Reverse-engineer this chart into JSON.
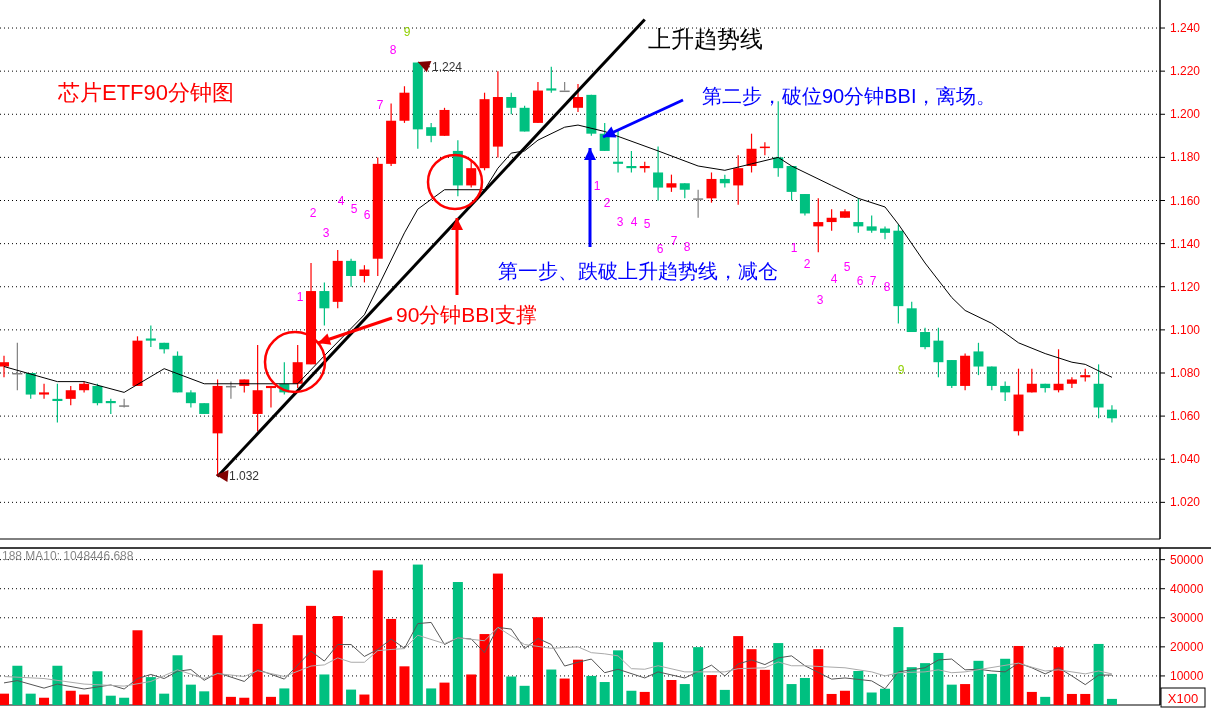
{
  "chart_data": [
    {
      "type": "candlestick",
      "title": "芯片ETF90分钟图",
      "categories": [
        null,
        null,
        null,
        null,
        null,
        null,
        null,
        null,
        null,
        null,
        null,
        null,
        null,
        null,
        null,
        null,
        null,
        null,
        null,
        null,
        null,
        null,
        null,
        null,
        null,
        null,
        null,
        null,
        null,
        null,
        null,
        null,
        null,
        null,
        null,
        null,
        null,
        null,
        null,
        null,
        null,
        null,
        null,
        null,
        null,
        null,
        null,
        null,
        null,
        null,
        null,
        null,
        null,
        null,
        null,
        null,
        null,
        null,
        null,
        null,
        null,
        null,
        null,
        null,
        null,
        null,
        null,
        null,
        null,
        null,
        null,
        null,
        null,
        null,
        null,
        null,
        null,
        null,
        null,
        null,
        null,
        null,
        null,
        null
      ],
      "ohlc": [
        [
          1.083,
          1.088,
          1.078,
          1.085
        ],
        [
          1.08,
          1.094,
          1.072,
          1.08
        ],
        [
          1.08,
          1.08,
          1.068,
          1.07
        ],
        [
          1.07,
          1.075,
          1.068,
          1.071
        ],
        [
          1.068,
          1.075,
          1.057,
          1.067
        ],
        [
          1.068,
          1.074,
          1.065,
          1.072
        ],
        [
          1.072,
          1.076,
          1.071,
          1.075
        ],
        [
          1.074,
          1.075,
          1.065,
          1.066
        ],
        [
          1.067,
          1.068,
          1.061,
          1.066
        ],
        [
          1.065,
          1.068,
          1.064,
          1.065
        ],
        [
          1.074,
          1.097,
          1.074,
          1.095
        ],
        [
          1.096,
          1.102,
          1.092,
          1.095
        ],
        [
          1.094,
          1.094,
          1.089,
          1.091
        ],
        [
          1.088,
          1.09,
          1.071,
          1.071
        ],
        [
          1.071,
          1.072,
          1.064,
          1.066
        ],
        [
          1.066,
          1.066,
          1.061,
          1.061
        ],
        [
          1.052,
          1.077,
          1.032,
          1.074
        ],
        [
          1.074,
          1.076,
          1.068,
          1.074
        ],
        [
          1.074,
          1.077,
          1.071,
          1.077
        ],
        [
          1.061,
          1.093,
          1.053,
          1.072
        ],
        [
          1.073,
          1.074,
          1.064,
          1.074
        ],
        [
          1.075,
          1.085,
          1.07,
          1.071
        ],
        [
          1.075,
          1.093,
          1.073,
          1.085
        ],
        [
          1.084,
          1.131,
          1.084,
          1.118
        ],
        [
          1.118,
          1.122,
          1.102,
          1.11
        ],
        [
          1.113,
          1.137,
          1.11,
          1.132
        ],
        [
          1.132,
          1.133,
          1.12,
          1.125
        ],
        [
          1.125,
          1.13,
          1.122,
          1.128
        ],
        [
          1.133,
          1.18,
          1.125,
          1.177
        ],
        [
          1.177,
          1.205,
          1.176,
          1.197
        ],
        [
          1.197,
          1.213,
          1.196,
          1.21
        ],
        [
          1.224,
          1.224,
          1.184,
          1.193
        ],
        [
          1.194,
          1.196,
          1.187,
          1.19
        ],
        [
          1.19,
          1.203,
          1.19,
          1.202
        ],
        [
          1.183,
          1.188,
          1.162,
          1.167
        ],
        [
          1.167,
          1.179,
          1.166,
          1.175
        ],
        [
          1.175,
          1.21,
          1.174,
          1.207
        ],
        [
          1.185,
          1.22,
          1.18,
          1.208
        ],
        [
          1.208,
          1.21,
          1.2,
          1.203
        ],
        [
          1.203,
          1.204,
          1.192,
          1.192
        ],
        [
          1.196,
          1.215,
          1.196,
          1.211
        ],
        [
          1.212,
          1.222,
          1.21,
          1.211
        ],
        [
          1.211,
          1.215,
          1.211,
          1.211
        ],
        [
          1.203,
          1.214,
          1.201,
          1.208
        ],
        [
          1.209,
          1.209,
          1.19,
          1.191
        ],
        [
          1.191,
          1.196,
          1.183,
          1.183
        ],
        [
          1.178,
          1.193,
          1.173,
          1.177
        ],
        [
          1.176,
          1.183,
          1.173,
          1.175
        ],
        [
          1.175,
          1.178,
          1.173,
          1.176
        ],
        [
          1.173,
          1.185,
          1.16,
          1.166
        ],
        [
          1.166,
          1.172,
          1.164,
          1.168
        ],
        [
          1.168,
          1.168,
          1.161,
          1.165
        ],
        [
          1.161,
          1.165,
          1.152,
          1.161
        ],
        [
          1.161,
          1.173,
          1.159,
          1.17
        ],
        [
          1.17,
          1.172,
          1.166,
          1.168
        ],
        [
          1.167,
          1.181,
          1.158,
          1.175
        ],
        [
          1.176,
          1.191,
          1.173,
          1.184
        ],
        [
          1.185,
          1.187,
          1.181,
          1.185
        ],
        [
          1.18,
          1.206,
          1.171,
          1.175
        ],
        [
          1.176,
          1.176,
          1.16,
          1.164
        ],
        [
          1.163,
          1.163,
          1.153,
          1.154
        ],
        [
          1.148,
          1.161,
          1.136,
          1.15
        ],
        [
          1.15,
          1.156,
          1.146,
          1.152
        ],
        [
          1.152,
          1.156,
          1.152,
          1.155
        ],
        [
          1.15,
          1.161,
          1.145,
          1.148
        ],
        [
          1.148,
          1.153,
          1.145,
          1.146
        ],
        [
          1.147,
          1.148,
          1.142,
          1.145
        ],
        [
          1.146,
          1.149,
          1.103,
          1.111
        ],
        [
          1.11,
          1.113,
          1.099,
          1.099
        ],
        [
          1.099,
          1.101,
          1.091,
          1.092
        ],
        [
          1.095,
          1.101,
          1.078,
          1.085
        ],
        [
          1.086,
          1.086,
          1.073,
          1.074
        ],
        [
          1.074,
          1.089,
          1.072,
          1.088
        ],
        [
          1.09,
          1.094,
          1.079,
          1.083
        ],
        [
          1.083,
          1.083,
          1.072,
          1.074
        ],
        [
          1.074,
          1.076,
          1.067,
          1.071
        ],
        [
          1.053,
          1.082,
          1.051,
          1.07
        ],
        [
          1.071,
          1.082,
          1.071,
          1.075
        ],
        [
          1.075,
          1.075,
          1.071,
          1.073
        ],
        [
          1.072,
          1.091,
          1.071,
          1.075
        ],
        [
          1.075,
          1.078,
          1.073,
          1.077
        ],
        [
          1.078,
          1.082,
          1.076,
          1.079
        ],
        [
          1.075,
          1.084,
          1.059,
          1.064
        ],
        [
          1.063,
          1.065,
          1.057,
          1.059
        ]
      ],
      "colors": [
        "#ff0000",
        "#808080",
        "#00c080",
        "#ff0000",
        "#00c080",
        "#ff0000",
        "#ff0000",
        "#00c080",
        "#00c080",
        "#808080",
        "#ff0000",
        "#00c080",
        "#00c080",
        "#00c080",
        "#00c080",
        "#00c080",
        "#ff0000",
        "#808080",
        "#ff0000",
        "#ff0000",
        "#ff0000",
        "#00c080",
        "#ff0000",
        "#ff0000",
        "#00c080",
        "#ff0000",
        "#00c080",
        "#ff0000",
        "#ff0000",
        "#ff0000",
        "#ff0000",
        "#00c080",
        "#00c080",
        "#ff0000",
        "#00c080",
        "#ff0000",
        "#ff0000",
        "#ff0000",
        "#00c080",
        "#00c080",
        "#ff0000",
        "#00c080",
        "#808080",
        "#ff0000",
        "#00c080",
        "#00c080",
        "#00c080",
        "#00c080",
        "#ff0000",
        "#00c080",
        "#ff0000",
        "#00c080",
        "#808080",
        "#ff0000",
        "#00c080",
        "#ff0000",
        "#ff0000",
        "#ff0000",
        "#00c080",
        "#00c080",
        "#00c080",
        "#ff0000",
        "#ff0000",
        "#ff0000",
        "#00c080",
        "#00c080",
        "#00c080",
        "#00c080",
        "#00c080",
        "#00c080",
        "#00c080",
        "#00c080",
        "#ff0000",
        "#00c080",
        "#00c080",
        "#00c080",
        "#ff0000",
        "#ff0000",
        "#00c080",
        "#ff0000",
        "#ff0000",
        "#ff0000",
        "#00c080",
        "#00c080"
      ],
      "ylim": [
        1.003,
        1.253
      ],
      "yticks": [
        {
          "value": 1.02,
          "label": "1.020"
        },
        {
          "value": 1.04,
          "label": "1.040"
        },
        {
          "value": 1.06,
          "label": "1.060"
        },
        {
          "value": 1.08,
          "label": "1.080"
        },
        {
          "value": 1.1,
          "label": "1.100"
        },
        {
          "value": 1.12,
          "label": "1.120"
        },
        {
          "value": 1.14,
          "label": "1.140"
        },
        {
          "value": 1.16,
          "label": "1.160"
        },
        {
          "value": 1.18,
          "label": "1.180"
        },
        {
          "value": 1.2,
          "label": "1.200"
        },
        {
          "value": 1.22,
          "label": "1.220"
        },
        {
          "value": 1.24,
          "label": "1.240"
        }
      ],
      "grid": "y",
      "tick_labels": "y",
      "annotations": [
        "上升趋势线",
        "90分钟BBI支撑",
        "第一步、跌破上升趋势线，减仓",
        "第二步，破位90分钟BBI，离场。",
        "1",
        "2",
        "3",
        "4",
        "5",
        "6",
        "7",
        "8",
        "9",
        "1",
        "2",
        "3",
        "4",
        "5",
        "6",
        "7",
        "8",
        "1",
        "2",
        "3",
        "4",
        "5",
        "6",
        "7",
        "8",
        "9",
        "1.224",
        "1.032"
      ],
      "series": [
        {
          "type": "line",
          "color": "#000000",
          "values": [
            1.083,
            null,
            null,
            null,
            1.076,
            null,
            1.076,
            null,
            null,
            1.071,
            null,
            null,
            1.082,
            null,
            null,
            1.075,
            null,
            null,
            null,
            null,
            null,
            null,
            1.075,
            null,
            1.088,
            null,
            null,
            1.107,
            null,
            null,
            1.145,
            1.156,
            null,
            1.165,
            null,
            null,
            1.165,
            1.175,
            1.182,
            1.183,
            1.188,
            null,
            1.194,
            1.195,
            null,
            1.192,
            null,
            null,
            null,
            1.183,
            null,
            null,
            1.176,
            null,
            1.174,
            null,
            1.177,
            null,
            1.18,
            1.176,
            null,
            null,
            1.167,
            null,
            1.161,
            null,
            1.157,
            1.149,
            null,
            1.131,
            null,
            1.115,
            1.109,
            null,
            1.103,
            null,
            1.094,
            null,
            1.089,
            null,
            1.085,
            1.084,
            null,
            1.078
          ]
        },
        {
          "type": "line",
          "color": "#000000",
          "values": [
            null,
            null,
            null,
            null,
            null,
            null,
            null,
            null,
            null,
            null,
            null,
            null,
            null,
            null,
            null,
            null,
            1.032,
            null,
            null,
            null,
            null,
            null,
            null,
            null,
            null,
            null,
            null,
            null,
            null,
            null,
            null,
            null,
            null,
            null,
            null,
            null,
            null,
            null,
            null,
            null,
            null,
            null,
            null,
            null,
            null,
            null,
            null,
            null,
            1.244,
            null,
            null,
            null,
            null,
            null,
            null,
            null,
            null,
            null,
            null,
            null,
            null,
            null,
            null,
            null,
            null,
            null,
            null,
            null,
            null,
            null,
            null,
            null,
            null,
            null,
            null,
            null,
            null,
            null,
            null,
            null,
            null,
            null,
            null,
            null
          ]
        }
      ]
    },
    {
      "type": "bar",
      "categories": [
        null,
        null,
        null,
        null,
        null,
        null,
        null,
        null,
        null,
        null,
        null,
        null,
        null,
        null,
        null,
        null,
        null,
        null,
        null,
        null,
        null,
        null,
        null,
        null,
        null,
        null,
        null,
        null,
        null,
        null,
        null,
        null,
        null,
        null,
        null,
        null,
        null,
        null,
        null,
        null,
        null,
        null,
        null,
        null,
        null,
        null,
        null,
        null,
        null,
        null,
        null,
        null,
        null,
        null,
        null,
        null,
        null,
        null,
        null,
        null,
        null,
        null,
        null,
        null,
        null,
        null,
        null,
        null,
        null,
        null,
        null,
        null,
        null,
        null,
        null,
        null,
        null,
        null,
        null,
        null,
        null,
        null,
        null,
        null
      ],
      "ylim": [
        0,
        54000
      ],
      "yticks": [
        10000,
        20000,
        30000,
        40000,
        50000
      ],
      "ylabel": "X100",
      "grid": "y",
      "tick_labels": "y",
      "annotations": [
        "188 MA10: 1048446.688"
      ],
      "series": [
        {
          "type": "bar",
          "values": [
            3900,
            13500,
            3900,
            2500,
            13500,
            4900,
            3600,
            11600,
            3200,
            2500,
            25700,
            9600,
            3900,
            17100,
            7000,
            4700,
            24000,
            2800,
            2500,
            27900,
            2800,
            5700,
            24000,
            34100,
            10500,
            30600,
            5300,
            3600,
            46300,
            29600,
            13300,
            48300,
            5700,
            7700,
            42300,
            10500,
            24400,
            45200,
            9800,
            6600,
            30200,
            12200,
            9100,
            15600,
            10000,
            7900,
            18800,
            4900,
            4500,
            21600,
            8600,
            7200,
            19900,
            10300,
            5200,
            23700,
            19200,
            12100,
            21300,
            7200,
            9300,
            19200,
            3800,
            4900,
            11700,
            4300,
            5600,
            26800,
            13000,
            14400,
            17900,
            7000,
            7200,
            15200,
            10700,
            15900,
            20300,
            4500,
            2800,
            19900,
            3800,
            3800,
            21000,
            2100
          ],
          "colors": [
            "#ff0000",
            "#00c080",
            "#00c080",
            "#ff0000",
            "#00c080",
            "#ff0000",
            "#ff0000",
            "#00c080",
            "#00c080",
            "#00c080",
            "#ff0000",
            "#00c080",
            "#00c080",
            "#00c080",
            "#00c080",
            "#00c080",
            "#ff0000",
            "#ff0000",
            "#ff0000",
            "#ff0000",
            "#ff0000",
            "#00c080",
            "#ff0000",
            "#ff0000",
            "#00c080",
            "#ff0000",
            "#00c080",
            "#ff0000",
            "#ff0000",
            "#ff0000",
            "#ff0000",
            "#00c080",
            "#00c080",
            "#ff0000",
            "#00c080",
            "#ff0000",
            "#ff0000",
            "#ff0000",
            "#00c080",
            "#00c080",
            "#ff0000",
            "#00c080",
            "#ff0000",
            "#ff0000",
            "#00c080",
            "#00c080",
            "#00c080",
            "#00c080",
            "#ff0000",
            "#00c080",
            "#ff0000",
            "#00c080",
            "#00c080",
            "#ff0000",
            "#00c080",
            "#ff0000",
            "#ff0000",
            "#ff0000",
            "#00c080",
            "#00c080",
            "#00c080",
            "#ff0000",
            "#ff0000",
            "#ff0000",
            "#00c080",
            "#00c080",
            "#00c080",
            "#00c080",
            "#00c080",
            "#00c080",
            "#00c080",
            "#00c080",
            "#ff0000",
            "#00c080",
            "#00c080",
            "#00c080",
            "#ff0000",
            "#ff0000",
            "#00c080",
            "#ff0000",
            "#ff0000",
            "#ff0000",
            "#00c080",
            "#00c080"
          ]
        },
        {
          "type": "line",
          "color": "#555555",
          "values": [
            7600,
            8400,
            null,
            5800,
            7200,
            null,
            5500,
            null,
            6900,
            5500,
            9100,
            10500,
            9100,
            11600,
            12200,
            8500,
            11100,
            null,
            8100,
            12200,
            null,
            8900,
            null,
            18500,
            15100,
            20800,
            20800,
            16700,
            19100,
            22700,
            19500,
            28000,
            28400,
            20800,
            23100,
            22700,
            18000,
            26700,
            26100,
            19400,
            22900,
            20800,
            13400,
            14700,
            15800,
            11100,
            12300,
            null,
            9300,
            11400,
            null,
            9300,
            null,
            13700,
            10000,
            14100,
            15500,
            13900,
            16200,
            16900,
            13500,
            null,
            8900,
            9300,
            null,
            8300,
            5600,
            11400,
            12100,
            12800,
            15500,
            15800,
            12100,
            12300,
            11700,
            11400,
            14400,
            12800,
            10700,
            12800,
            10000,
            7000,
            10300,
            10300
          ]
        },
        {
          "type": "line",
          "color": "#aaaaaa",
          "values": [
            9800,
            null,
            null,
            9100,
            null,
            null,
            7200,
            null,
            null,
            6500,
            null,
            8100,
            null,
            12100,
            null,
            9100,
            10800,
            null,
            9800,
            11800,
            null,
            9800,
            null,
            13400,
            13800,
            16200,
            14700,
            14700,
            18700,
            19100,
            19400,
            24000,
            null,
            21100,
            23100,
            null,
            22100,
            26700,
            null,
            20800,
            null,
            19500,
            null,
            20000,
            18000,
            17600,
            16900,
            12500,
            12300,
            13500,
            null,
            11400,
            null,
            11400,
            11400,
            12500,
            null,
            12800,
            14800,
            13500,
            13500,
            null,
            null,
            12800,
            null,
            11400,
            10000,
            11100,
            null,
            11400,
            12100,
            11100,
            11400,
            null,
            null,
            null,
            14400,
            13000,
            11700,
            12100,
            11400,
            10700,
            11700,
            10700
          ]
        }
      ]
    }
  ]
}
